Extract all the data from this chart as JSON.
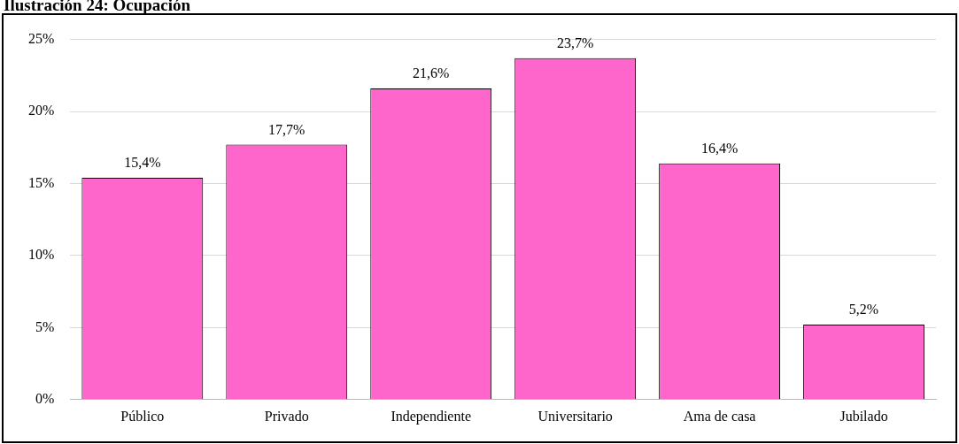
{
  "chart_data": {
    "type": "bar",
    "title": "Ilustración 24: Ocupación",
    "categories": [
      "Público",
      "Privado",
      "Independiente",
      "Universitario",
      "Ama de casa",
      "Jubilado"
    ],
    "values": [
      15.4,
      17.7,
      21.6,
      23.7,
      16.4,
      5.2
    ],
    "value_labels": [
      "15,4%",
      "17,7%",
      "21,6%",
      "23,7%",
      "16,4%",
      "5,2%"
    ],
    "color": "#ff66cc",
    "ylim": [
      0,
      25
    ],
    "yticks": [
      {
        "value": 0,
        "label": "0%"
      },
      {
        "value": 5,
        "label": "5%"
      },
      {
        "value": 10,
        "label": "10%"
      },
      {
        "value": 15,
        "label": "15%"
      },
      {
        "value": 20,
        "label": "20%"
      },
      {
        "value": 25,
        "label": "25%"
      }
    ],
    "grid": "y",
    "legend": false
  }
}
